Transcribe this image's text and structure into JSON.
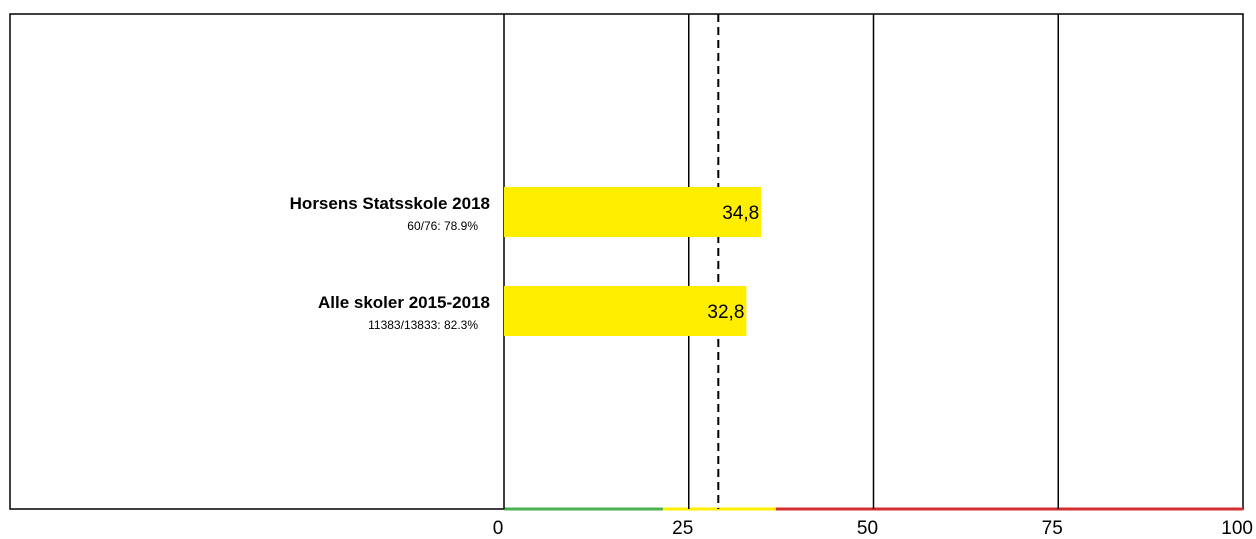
{
  "chart_data": {
    "type": "bar",
    "orientation": "horizontal",
    "title": "",
    "xlim": [
      0,
      100
    ],
    "x_ticks": [
      0,
      25,
      50,
      75,
      100
    ],
    "x_tick_labels": [
      "0",
      "25",
      "50",
      "75",
      "100"
    ],
    "categories": [
      {
        "label": "Horsens Statsskole 2018",
        "sublabel": "60/76: 78.9%",
        "value": 34.8,
        "value_label": "34,8",
        "color": "#ffee00"
      },
      {
        "label": "Alle skoler 2015-2018",
        "sublabel": "11383/13833: 82.3%",
        "value": 32.8,
        "value_label": "32,8",
        "color": "#ffee00"
      }
    ],
    "vertical_lines": [
      {
        "x": 25,
        "style": "solid"
      },
      {
        "x": 50,
        "style": "solid"
      },
      {
        "x": 75,
        "style": "solid"
      },
      {
        "x": 29,
        "style": "dashed"
      }
    ],
    "color_bands": [
      {
        "from": 0,
        "to": 21.5,
        "color": "#4caf50"
      },
      {
        "from": 21.5,
        "to": 36.8,
        "color": "#ffee00"
      },
      {
        "from": 36.8,
        "to": 100,
        "color": "#d32f2f"
      }
    ],
    "grid": true
  }
}
